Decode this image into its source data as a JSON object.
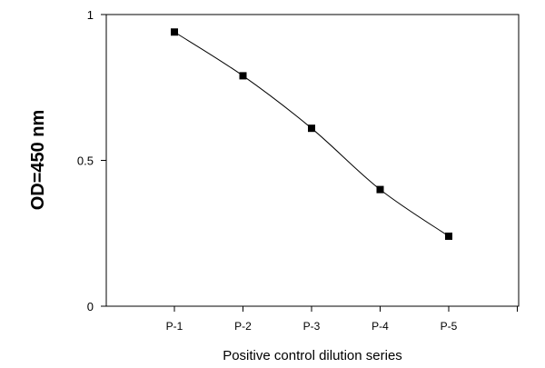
{
  "chart_data": {
    "type": "line",
    "title": "",
    "xlabel": "Positive control dilution series",
    "ylabel": "OD=450 nm",
    "categories": [
      "P-1",
      "P-2",
      "P-3",
      "P-4",
      "P-5"
    ],
    "series": [
      {
        "values": [
          0.94,
          0.79,
          0.61,
          0.4,
          0.24
        ],
        "color": "#000000",
        "marker": "square"
      }
    ],
    "ylim": [
      0,
      1
    ],
    "yticks": [
      0,
      0.5,
      1
    ],
    "ytick_labels": [
      "0",
      "0.5",
      "1"
    ],
    "grid": false,
    "legend": "none",
    "line_style": "smooth"
  }
}
